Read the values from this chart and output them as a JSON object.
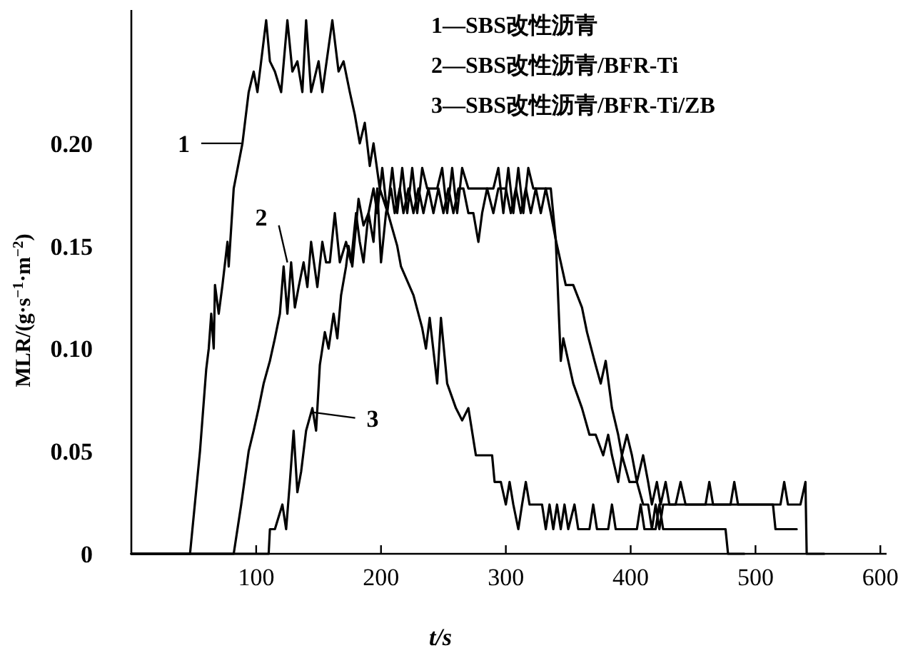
{
  "chart_data": {
    "type": "line",
    "xlabel": "t/s",
    "ylabel": "MLR/(g·s$^{−1}$·m$^{−2}$)",
    "xlim": [
      0,
      605
    ],
    "ylim": [
      0,
      0.265
    ],
    "xticks": [
      100,
      200,
      300,
      400,
      500,
      600
    ],
    "yticks": [
      0,
      0.05,
      {
        "value": 0.1,
        "label": "0.10"
      },
      0.15,
      {
        "value": 0.2,
        "label": "0.20"
      }
    ],
    "annotations": [
      "1—SBS改性沥青",
      "2—SBS改性沥青/BFR-Ti",
      "3—SBS改性沥青/BFR-Ti/ZB",
      {
        "text": "1",
        "x": 88,
        "y": 0.2
      },
      {
        "text": "2",
        "x": 125,
        "y": 0.142
      },
      {
        "text": "3",
        "x": 145,
        "y": 0.069
      }
    ],
    "series": [
      {
        "color": "#000000",
        "x": [
          0,
          47,
          55,
          60,
          62,
          64,
          66,
          67,
          70,
          73,
          77,
          78,
          82,
          89,
          94,
          98,
          101,
          108,
          111,
          115,
          120,
          125,
          129,
          133,
          137,
          140,
          144,
          150,
          153,
          161,
          166,
          170,
          175,
          179,
          183,
          187,
          191,
          194,
          199,
          206,
          213,
          216,
          226,
          233,
          236,
          239,
          245,
          248,
          253,
          260,
          265,
          270,
          276,
          289,
          291,
          296,
          300,
          303,
          306,
          310,
          313,
          316,
          319,
          329,
          332,
          335,
          338,
          341,
          344,
          347,
          350,
          355,
          358,
          367,
          370,
          373,
          382,
          385,
          388,
          405,
          408,
          411,
          420,
          423,
          426,
          436,
          476,
          478,
          491
        ],
        "values": [
          0,
          0,
          0.05,
          0.09,
          0.1,
          0.117,
          0.1,
          0.131,
          0.117,
          0.131,
          0.152,
          0.14,
          0.178,
          0.2,
          0.225,
          0.235,
          0.225,
          0.26,
          0.24,
          0.235,
          0.225,
          0.26,
          0.235,
          0.24,
          0.225,
          0.26,
          0.225,
          0.24,
          0.225,
          0.26,
          0.235,
          0.24,
          0.225,
          0.214,
          0.2,
          0.21,
          0.189,
          0.2,
          0.178,
          0.165,
          0.15,
          0.14,
          0.126,
          0.11,
          0.1,
          0.115,
          0.083,
          0.115,
          0.083,
          0.071,
          0.065,
          0.071,
          0.048,
          0.048,
          0.035,
          0.035,
          0.024,
          0.035,
          0.024,
          0.012,
          0.024,
          0.035,
          0.024,
          0.024,
          0.012,
          0.024,
          0.012,
          0.024,
          0.012,
          0.024,
          0.012,
          0.024,
          0.012,
          0.012,
          0.024,
          0.012,
          0.012,
          0.024,
          0.012,
          0.012,
          0.024,
          0.012,
          0.012,
          0.024,
          0.012,
          0.012,
          0.012,
          0,
          0
        ]
      },
      {
        "color": "#000000",
        "x": [
          0,
          82,
          88,
          94,
          98,
          102,
          106,
          111,
          115,
          119,
          122,
          125,
          128,
          131,
          134,
          138,
          141,
          144,
          149,
          153,
          156,
          159,
          163,
          167,
          172,
          176,
          180,
          183,
          186,
          190,
          194,
          197,
          200,
          204,
          208,
          211,
          215,
          218,
          222,
          226,
          230,
          234,
          238,
          242,
          246,
          250,
          254,
          258,
          262,
          266,
          270,
          274,
          278,
          281,
          285,
          290,
          294,
          300,
          304,
          308,
          312,
          316,
          320,
          324,
          328,
          332,
          336,
          340,
          344,
          346,
          350,
          354,
          361,
          367,
          372,
          378,
          382,
          385,
          390,
          393,
          399,
          405,
          410,
          414,
          417,
          420,
          423,
          426,
          429,
          514,
          516,
          533
        ],
        "values": [
          0,
          0,
          0.024,
          0.05,
          0.06,
          0.071,
          0.083,
          0.094,
          0.105,
          0.117,
          0.14,
          0.117,
          0.142,
          0.12,
          0.13,
          0.142,
          0.13,
          0.152,
          0.13,
          0.152,
          0.142,
          0.142,
          0.166,
          0.142,
          0.152,
          0.142,
          0.166,
          0.152,
          0.142,
          0.166,
          0.152,
          0.178,
          0.142,
          0.166,
          0.178,
          0.166,
          0.178,
          0.166,
          0.178,
          0.166,
          0.178,
          0.166,
          0.178,
          0.166,
          0.178,
          0.166,
          0.178,
          0.166,
          0.178,
          0.178,
          0.166,
          0.166,
          0.152,
          0.166,
          0.178,
          0.166,
          0.178,
          0.178,
          0.166,
          0.178,
          0.166,
          0.178,
          0.166,
          0.178,
          0.166,
          0.178,
          0.166,
          0.153,
          0.094,
          0.105,
          0.094,
          0.083,
          0.071,
          0.058,
          0.058,
          0.048,
          0.058,
          0.048,
          0.035,
          0.048,
          0.035,
          0.035,
          0.024,
          0.024,
          0.012,
          0.024,
          0.012,
          0.024,
          0.024,
          0.024,
          0.012,
          0.012
        ]
      },
      {
        "color": "#000000",
        "x": [
          0,
          110,
          111,
          115,
          121,
          124,
          127,
          130,
          133,
          136,
          140,
          145,
          148,
          151,
          155,
          158,
          162,
          165,
          168,
          172,
          174,
          177,
          182,
          186,
          190,
          194,
          197,
          201,
          205,
          209,
          213,
          217,
          221,
          225,
          229,
          233,
          237,
          245,
          249,
          253,
          257,
          261,
          265,
          270,
          290,
          294,
          298,
          302,
          306,
          310,
          314,
          318,
          322,
          336,
          340,
          344,
          348,
          354,
          361,
          365,
          371,
          376,
          380,
          385,
          390,
          393,
          397,
          401,
          405,
          410,
          414,
          417,
          421,
          424,
          428,
          431,
          436,
          440,
          444,
          460,
          463,
          466,
          480,
          483,
          486,
          520,
          523,
          526,
          536,
          540,
          541,
          555
        ],
        "values": [
          0,
          0,
          0.012,
          0.012,
          0.024,
          0.012,
          0.035,
          0.06,
          0.03,
          0.04,
          0.06,
          0.071,
          0.06,
          0.092,
          0.108,
          0.1,
          0.117,
          0.105,
          0.126,
          0.14,
          0.15,
          0.14,
          0.173,
          0.16,
          0.166,
          0.178,
          0.166,
          0.188,
          0.166,
          0.188,
          0.166,
          0.188,
          0.166,
          0.188,
          0.166,
          0.188,
          0.178,
          0.178,
          0.188,
          0.166,
          0.188,
          0.166,
          0.188,
          0.178,
          0.178,
          0.188,
          0.166,
          0.188,
          0.166,
          0.188,
          0.166,
          0.188,
          0.178,
          0.178,
          0.153,
          0.142,
          0.131,
          0.131,
          0.12,
          0.108,
          0.094,
          0.083,
          0.094,
          0.071,
          0.058,
          0.048,
          0.058,
          0.048,
          0.035,
          0.048,
          0.035,
          0.024,
          0.035,
          0.024,
          0.035,
          0.024,
          0.024,
          0.035,
          0.024,
          0.024,
          0.035,
          0.024,
          0.024,
          0.035,
          0.024,
          0.024,
          0.035,
          0.024,
          0.024,
          0.035,
          0,
          0
        ]
      }
    ]
  }
}
